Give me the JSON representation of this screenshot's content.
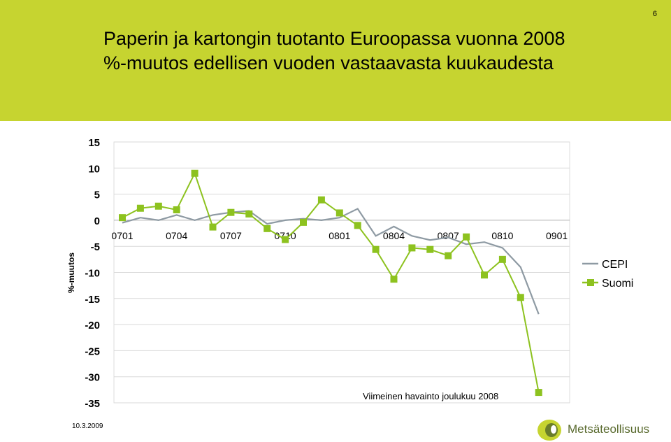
{
  "slide": {
    "title": "Paperin ja kartongin tuotanto Euroopassa vuonna 2008",
    "subtitle": "%-muutos edellisen vuoden vastaavasta kuukaudesta",
    "page_number": "6",
    "date": "10.3.2009",
    "logo_text": "Metsäteollisuus",
    "header_color": "#c6d430"
  },
  "chart_data": {
    "type": "line",
    "title": "",
    "ylabel": "%-muutos",
    "xlabel": "",
    "ylim": [
      -35,
      15
    ],
    "yticks": [
      15,
      10,
      5,
      0,
      -5,
      -10,
      -15,
      -20,
      -25,
      -30,
      -35
    ],
    "x_tick_labels": [
      "0701",
      "0704",
      "0707",
      "0710",
      "0801",
      "0804",
      "0807",
      "0810",
      "0901"
    ],
    "x": [
      "0701",
      "0702",
      "0703",
      "0704",
      "0705",
      "0706",
      "0707",
      "0708",
      "0709",
      "0710",
      "0711",
      "0712",
      "0801",
      "0802",
      "0803",
      "0804",
      "0805",
      "0806",
      "0807",
      "0808",
      "0809",
      "0810",
      "0811",
      "0812"
    ],
    "grid": true,
    "legend_position": "right",
    "annotation": "Viimeinen havainto joulukuu 2008",
    "series": [
      {
        "name": "CEPI",
        "color": "#8e9aa3",
        "marker": "none",
        "values": [
          -0.5,
          0.5,
          0,
          1,
          0,
          1,
          1.5,
          1.8,
          -0.7,
          0,
          0.3,
          0,
          0.5,
          2.2,
          -3,
          -1.2,
          -3,
          -3.8,
          -3.3,
          -4.6,
          -4.2,
          -5.3,
          -9,
          -18
        ]
      },
      {
        "name": "Suomi",
        "color": "#8dc21f",
        "marker": "square",
        "values": [
          0.5,
          2.3,
          2.7,
          2,
          9,
          -1.3,
          1.5,
          1.2,
          -1.6,
          -3.7,
          -0.4,
          3.9,
          1.4,
          -1,
          -5.6,
          -11.3,
          -5.3,
          -5.6,
          -6.8,
          -3.2,
          -10.5,
          -7.5,
          -14.8,
          -33
        ]
      }
    ]
  }
}
